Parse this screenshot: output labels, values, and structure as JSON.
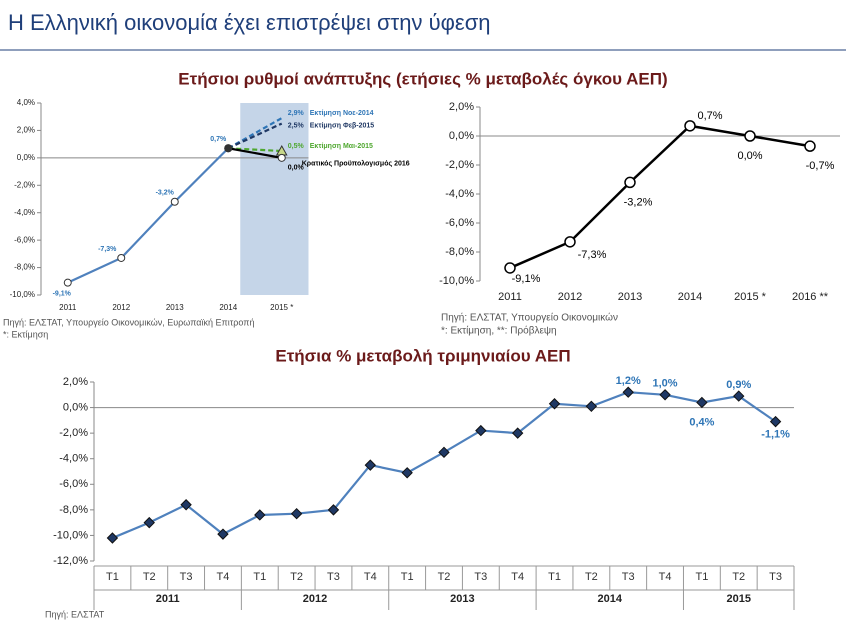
{
  "header": {
    "title": "Η Ελληνική οικονομία έχει επιστρέψει στην ύφεση",
    "section1": "Ετήσιοι ρυθμοί ανάπτυξης (ετήσιες % μεταβολές όγκου ΑΕΠ)"
  },
  "chart_data": [
    {
      "type": "line",
      "categories": [
        "2011",
        "2012",
        "2013",
        "2014",
        "2015 *"
      ],
      "ylim": [
        -10,
        4
      ],
      "yticks": [
        {
          "value": 4,
          "label": "4,0%"
        },
        {
          "value": 2,
          "label": "2,0%"
        },
        {
          "value": 0,
          "label": "0,0%"
        },
        {
          "value": -2,
          "label": "-2,0%"
        },
        {
          "value": -4,
          "label": "-4,0%"
        },
        {
          "value": -6,
          "label": "-6,0%"
        },
        {
          "value": -8,
          "label": "-8,0%"
        },
        {
          "value": -10,
          "label": "-10,0%"
        }
      ],
      "series": [
        {
          "color": "#4f81bd",
          "values": [
            -9.1,
            -7.3,
            -3.2,
            0.7,
            null
          ],
          "value_labels": [
            "-9,1%",
            "-7,3%",
            "-3,2%",
            "0,7%",
            null
          ],
          "marker": "circle"
        },
        {
          "name": "Εκτίμηση Νοε-2014",
          "color": "#2e75b6",
          "dashed": true,
          "values": [
            null,
            null,
            null,
            0.7,
            2.9
          ],
          "value_labels": [
            null,
            null,
            null,
            null,
            "2,9%"
          ]
        },
        {
          "name": "Εκτίμηση Φεβ-2015",
          "color": "#1f3864",
          "dashed": true,
          "values": [
            null,
            null,
            null,
            0.7,
            2.5
          ],
          "value_labels": [
            null,
            null,
            null,
            null,
            "2,5%"
          ]
        },
        {
          "name": "Εκτίμηση Μαι-2015",
          "color": "#4ea72e",
          "dashed": true,
          "marker": "triangle",
          "values": [
            null,
            null,
            null,
            0.7,
            0.5
          ],
          "value_labels": [
            null,
            null,
            null,
            null,
            "0,5%"
          ]
        },
        {
          "name": "Κρατικός Προϋπολογισμός 2016",
          "color": "#000000",
          "marker": "circle",
          "values": [
            null,
            null,
            null,
            0.7,
            0.0
          ],
          "value_labels": [
            null,
            null,
            null,
            null,
            "0,0%"
          ]
        }
      ],
      "notes": [
        "Πηγή: ΕΛΣΤΑΤ, Υπουργείο Οικονομικών, Ευρωπαϊκή Επιτροπή",
        "*: Εκτίμηση"
      ]
    },
    {
      "type": "line",
      "categories": [
        "2011",
        "2012",
        "2013",
        "2014",
        "2015 *",
        "2016 **"
      ],
      "ylim": [
        -10,
        2
      ],
      "yticks": [
        {
          "value": 2,
          "label": "2,0%"
        },
        {
          "value": 0,
          "label": "0,0%"
        },
        {
          "value": -2,
          "label": "-2,0%"
        },
        {
          "value": -4,
          "label": "-4,0%"
        },
        {
          "value": -6,
          "label": "-6,0%"
        },
        {
          "value": -8,
          "label": "-8,0%"
        },
        {
          "value": -10,
          "label": "-10,0%"
        }
      ],
      "series": [
        {
          "color": "#000000",
          "marker": "open-circle",
          "values": [
            -9.1,
            -7.3,
            -3.2,
            0.7,
            0.0,
            -0.7
          ],
          "value_labels": [
            "-9,1%",
            "-7,3%",
            "-3,2%",
            "0,7%",
            "0,0%",
            "-0,7%"
          ]
        }
      ],
      "notes": [
        "Πηγή: ΕΛΣΤΑΤ, Υπουργείο Οικονομικών",
        "*: Εκτίμηση, **: Πρόβλεψη"
      ]
    },
    {
      "type": "line",
      "title": "Ετήσια % μεταβολή τριμηνιαίου ΑΕΠ",
      "categories": [
        "T1",
        "T2",
        "T3",
        "T4",
        "T1",
        "T2",
        "T3",
        "T4",
        "T1",
        "T2",
        "T3",
        "T4",
        "T1",
        "T2",
        "T3",
        "T4",
        "T1",
        "T2",
        "T3"
      ],
      "year_labels": [
        "2011",
        "2012",
        "2013",
        "2014",
        "2015"
      ],
      "ylim": [
        -12,
        2
      ],
      "yticks": [
        {
          "value": 2,
          "label": "2,0%"
        },
        {
          "value": 0,
          "label": "0,0%"
        },
        {
          "value": -2,
          "label": "-2,0%"
        },
        {
          "value": -4,
          "label": "-4,0%"
        },
        {
          "value": -6,
          "label": "-6,0%"
        },
        {
          "value": -8,
          "label": "-8,0%"
        },
        {
          "value": -10,
          "label": "-10,0%"
        },
        {
          "value": -12,
          "label": "-12,0%"
        }
      ],
      "series": [
        {
          "color": "#4f81bd",
          "marker": "diamond",
          "values": [
            -10.2,
            -9.0,
            -7.6,
            -9.9,
            -8.4,
            -8.3,
            -8.0,
            -4.5,
            -5.1,
            -3.5,
            -1.8,
            -2.0,
            0.3,
            0.1,
            1.2,
            1.0,
            0.4,
            0.9,
            -1.1
          ],
          "value_labels": [
            null,
            null,
            null,
            null,
            null,
            null,
            null,
            null,
            null,
            null,
            null,
            null,
            null,
            null,
            "1,2%",
            "1,0%",
            "0,4%",
            "0,9%",
            "-1,1%"
          ]
        }
      ],
      "notes": [
        "Πηγή: ΕΛΣΤΑΤ"
      ]
    }
  ]
}
